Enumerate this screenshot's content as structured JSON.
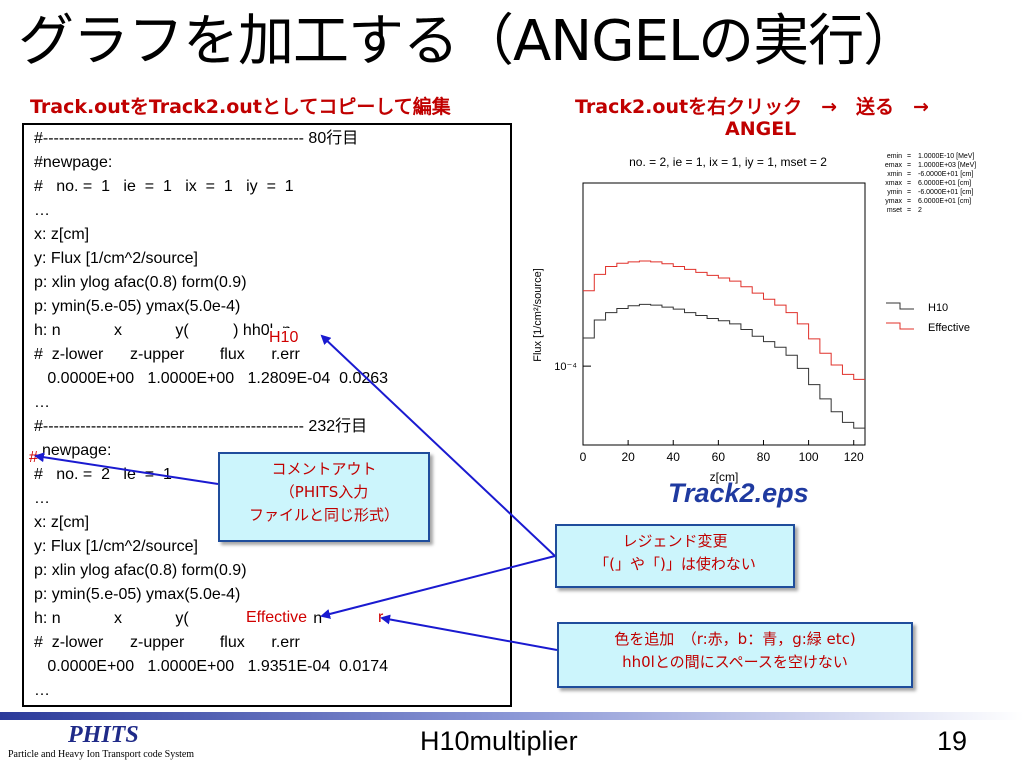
{
  "slide": {
    "title": "グラフを加工する（ANGELの実行）",
    "subtitle_left": "Track.outをTrack2.outとしてコピーして編集",
    "subtitle_right_1": "Track2.outを右クリック　→　送る　→",
    "subtitle_right_2": "ANGEL"
  },
  "code": {
    "lines": [
      "#------------------------------------------------- 80行目",
      "#newpage:",
      "#   no. =  1   ie  =  1   ix  =  1   iy  =  1",
      "…",
      "x: z[cm]",
      "y: Flux [1/cm^2/source]",
      "p: xlin ylog afac(0.8) form(0.9)",
      "p: ymin(5.e-05) ymax(5.0e-4)",
      "h: n            x            y(          ) hh0l  n",
      "#  z-lower      z-upper        flux      r.err",
      "   0.0000E+00   1.0000E+00   1.2809E-04  0.0263",
      "…",
      "#------------------------------------------------- 232行目",
      "newpage:",
      "#   no. =  2   ie  =  1",
      "…",
      "x: z[cm]",
      "y: Flux [1/cm^2/source]",
      "p: xlin ylog afac(0.8) form(0.9)",
      "p: ymin(5.e-05) ymax(5.0e-4)",
      "h: n            x            y(                ),hh0l   n",
      "#  z-lower      z-upper        flux      r.err",
      "   0.0000E+00   1.0000E+00   1.9351E-04  0.0174",
      "…"
    ],
    "hash_red": "#",
    "insert_h10": "H10",
    "insert_effective": "Effective",
    "insert_r": "r"
  },
  "callouts": {
    "comment_out": [
      "コメントアウト",
      "（PHITS入力",
      "ファイルと同じ形式）"
    ],
    "legend_change": [
      "レジェンド変更",
      "「(」や「)」は使わない"
    ],
    "add_color": [
      "色を追加　（r:赤，b：青，g:緑 etc)",
      "hh0lとの間にスペースを空けない"
    ]
  },
  "eps_label": "Track2.eps",
  "chart_data": {
    "type": "line",
    "title": "no. =  2,  ie =  1,  ix =  1,  iy =  1,  mset =  2",
    "ylabel": "Flux [1/cm²/source]",
    "xlabel": "z[cm]",
    "xlim": [
      0,
      125
    ],
    "ylim": [
      5e-05,
      0.0005
    ],
    "yscale": "log",
    "xticks": [
      0,
      20,
      40,
      60,
      80,
      100,
      120
    ],
    "ytick_label": "10⁻⁴",
    "info": [
      {
        "k": "emin",
        "v": "1.0000E-10 [MeV]"
      },
      {
        "k": "emax",
        "v": "1.0000E+03 [MeV]"
      },
      {
        "k": "xmin",
        "v": "-6.0000E+01 [cm]"
      },
      {
        "k": "xmax",
        "v": "6.0000E+01 [cm]"
      },
      {
        "k": "ymin",
        "v": "-6.0000E+01 [cm]"
      },
      {
        "k": "ymax",
        "v": "6.0000E+01 [cm]"
      },
      {
        "k": "mset",
        "v": "2"
      }
    ],
    "series": [
      {
        "name": "H10",
        "color": "#333333",
        "x": [
          0,
          5,
          10,
          15,
          20,
          25,
          30,
          35,
          40,
          45,
          50,
          55,
          60,
          65,
          70,
          75,
          80,
          85,
          90,
          95,
          100,
          105,
          110,
          115,
          120
        ],
        "values": [
          0.000128,
          0.00015,
          0.00016,
          0.000166,
          0.00017,
          0.000172,
          0.000171,
          0.000168,
          0.000165,
          0.00016,
          0.000156,
          0.000152,
          0.000149,
          0.000145,
          0.000138,
          0.00013,
          0.000124,
          0.000118,
          0.00011,
          9.8e-05,
          8.5e-05,
          7.5e-05,
          6.7e-05,
          6.1e-05,
          5.8e-05
        ]
      },
      {
        "name": "Effective",
        "color": "#e0302a",
        "x": [
          0,
          5,
          10,
          15,
          20,
          25,
          30,
          35,
          40,
          45,
          50,
          55,
          60,
          65,
          70,
          75,
          80,
          85,
          90,
          95,
          100,
          105,
          110,
          115,
          120
        ],
        "values": [
          0.000194,
          0.000224,
          0.00024,
          0.000247,
          0.00025,
          0.000252,
          0.00025,
          0.000246,
          0.00024,
          0.000234,
          0.000228,
          0.000222,
          0.000217,
          0.000211,
          0.000201,
          0.00019,
          0.00018,
          0.000171,
          0.00016,
          0.000145,
          0.000127,
          0.000112,
          0.000101,
          9.3e-05,
          8.9e-05
        ]
      }
    ]
  },
  "footer": {
    "logo": "PHITS",
    "logo_sub": "Particle and Heavy Ion Transport code System",
    "center": "H10multiplier",
    "page": "19"
  }
}
